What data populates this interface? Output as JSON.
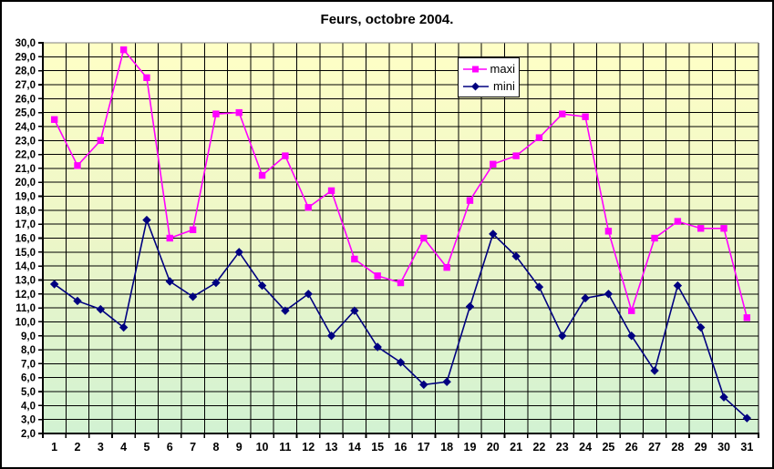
{
  "chart_data": {
    "type": "line",
    "title": "Feurs, octobre 2004.",
    "xlabel": "",
    "ylabel": "",
    "x": [
      1,
      2,
      3,
      4,
      5,
      6,
      7,
      8,
      9,
      10,
      11,
      12,
      13,
      14,
      15,
      16,
      17,
      18,
      19,
      20,
      21,
      22,
      23,
      24,
      25,
      26,
      27,
      28,
      29,
      30,
      31
    ],
    "x_tick_labels": [
      "1",
      "2",
      "3",
      "4",
      "5",
      "6",
      "7",
      "8",
      "9",
      "10",
      "11",
      "12",
      "13",
      "14",
      "15",
      "16",
      "17",
      "18",
      "19",
      "20",
      "21",
      "22",
      "23",
      "24",
      "25",
      "26",
      "27",
      "28",
      "29",
      "30",
      "31"
    ],
    "ylim": [
      2,
      30
    ],
    "y_tick_step": 1,
    "y_tick_labels": [
      "30,0",
      "29,0",
      "28,0",
      "27,0",
      "26,0",
      "25,0",
      "24,0",
      "23,0",
      "22,0",
      "21,0",
      "20,0",
      "19,0",
      "18,0",
      "17,0",
      "16,0",
      "15,0",
      "14,0",
      "13,0",
      "12,0",
      "11,0",
      "10,0",
      "9,0",
      "8,0",
      "7,0",
      "6,0",
      "5,0",
      "4,0",
      "3,0",
      "2,0"
    ],
    "grid": true,
    "legend_position": "top-center",
    "decimal_separator": ",",
    "colors": {
      "grid": "#000000",
      "axis": "#000000",
      "plot_border_top": "#808080",
      "bg_gradient_top": "#FFFFC6",
      "bg_gradient_mid": "#ECF6C8",
      "bg_gradient_bottom": "#D2F2D2",
      "maxi": "#FF00FF",
      "mini": "#000080"
    },
    "series": [
      {
        "name": "maxi",
        "color": "#FF00FF",
        "marker": "square",
        "values": [
          24.5,
          21.2,
          23.0,
          29.5,
          27.5,
          16.0,
          16.6,
          24.9,
          25.0,
          20.5,
          21.9,
          18.2,
          19.4,
          14.5,
          13.3,
          12.8,
          16.0,
          13.9,
          18.7,
          21.3,
          21.9,
          23.2,
          24.9,
          24.7,
          16.5,
          10.8,
          16.0,
          17.2,
          16.7,
          16.7,
          10.3
        ]
      },
      {
        "name": "mini",
        "color": "#000080",
        "marker": "diamond",
        "values": [
          12.7,
          11.5,
          10.9,
          9.6,
          17.3,
          12.9,
          11.8,
          12.8,
          15.0,
          12.6,
          10.8,
          12.0,
          9.0,
          10.8,
          8.2,
          7.1,
          5.5,
          5.7,
          11.1,
          16.3,
          14.7,
          12.5,
          9.0,
          11.7,
          12.0,
          9.0,
          6.5,
          12.6,
          9.6,
          4.6,
          3.1
        ]
      }
    ]
  }
}
